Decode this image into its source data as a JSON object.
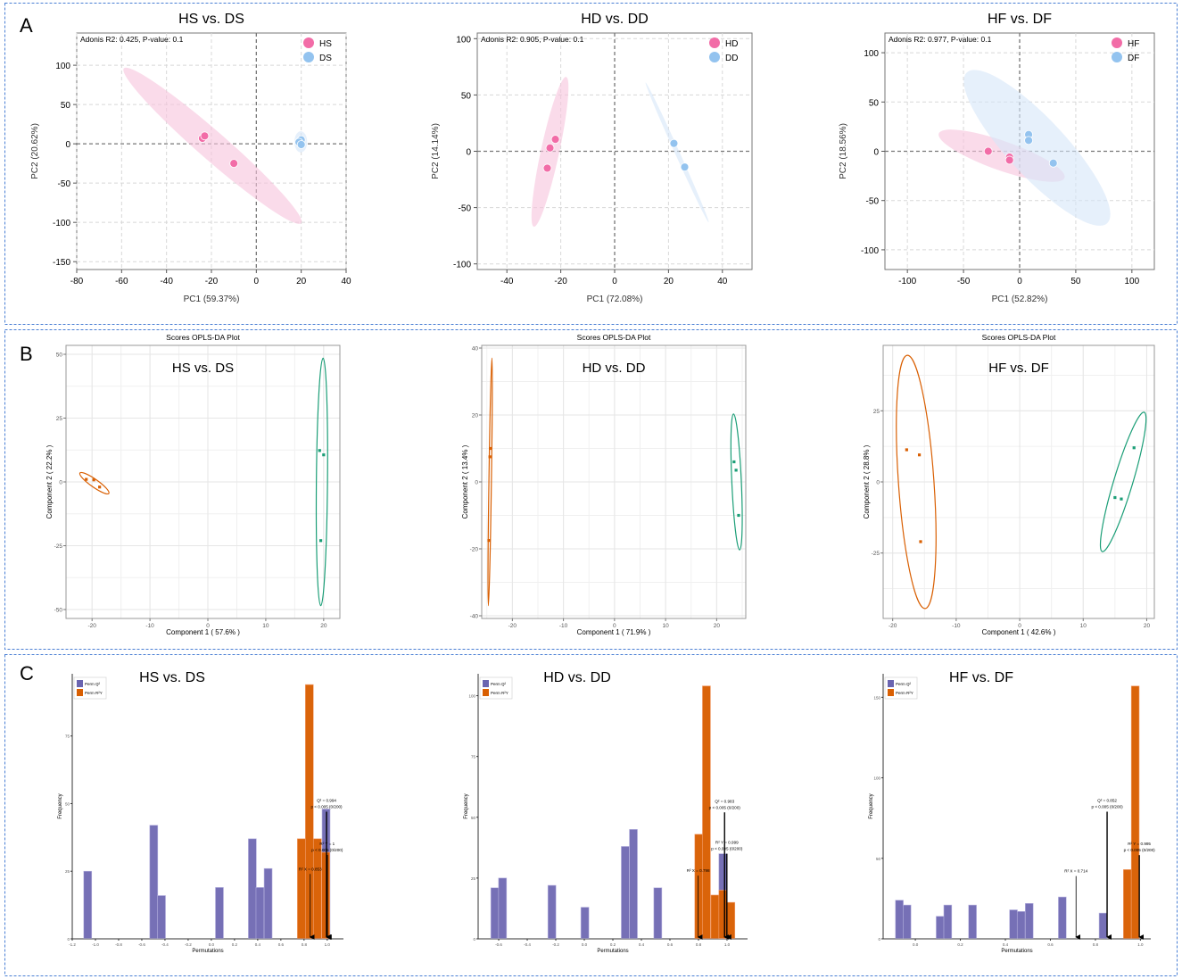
{
  "panels": [
    "A",
    "B",
    "C"
  ],
  "colors": {
    "pink": "#f26ca7",
    "pink_fill": "#f7c3dc",
    "blue": "#93c3ef",
    "blue_fill": "#d6e6f8",
    "opls_orange": "#d95f02",
    "opls_green": "#1b9e77",
    "perm_q2": "#6a64b0",
    "perm_r2y": "#d95f02",
    "border": "#4a7fd4"
  },
  "chart_data": [
    {
      "type": "scatter",
      "style": "pca",
      "title": "HS vs. DS",
      "xlabel": "PC1 (59.37%)",
      "ylabel": "PC2 (20.62%)",
      "xlim": [
        -80,
        40
      ],
      "ylim": [
        -160,
        141
      ],
      "xticks": [
        "-80",
        "-60",
        "-40",
        "-20",
        "0",
        "20",
        "40"
      ],
      "yticks": [
        "100",
        "50",
        "0",
        "-50",
        "-100",
        "-150"
      ],
      "annotation": "Adonis R2: 0.425, P-value: 0.1",
      "series": [
        {
          "name": "HS",
          "color": "pink",
          "points": [
            [
              -24,
              7
            ],
            [
              -23,
              10
            ],
            [
              -10,
              -25
            ]
          ],
          "ellipse": {
            "center": [
              -19.5,
              -2.5
            ],
            "axis_end_offset": [
              39.5,
              -98.5
            ],
            "minor_ratio": 0.12
          }
        },
        {
          "name": "DS",
          "color": "blue",
          "points": [
            [
              20,
              5
            ],
            [
              19,
              2
            ],
            [
              20,
              -1
            ]
          ],
          "ellipse": {
            "center": [
              19.8,
              2.5
            ],
            "axis_end_offset": [
              0,
              13.5
            ],
            "minor_ratio": 0.6
          }
        }
      ]
    },
    {
      "type": "scatter",
      "style": "pca",
      "title": "HD vs. DD",
      "xlabel": "PC1 (72.08%)",
      "ylabel": "PC2 (14.14%)",
      "xlim": [
        -51,
        51
      ],
      "ylim": [
        -105,
        105
      ],
      "xticks": [
        "-40",
        "-20",
        "0",
        "20",
        "40"
      ],
      "yticks": [
        "100",
        "50",
        "0",
        "-50",
        "-100"
      ],
      "annotation": "Adonis R2: 0.905, P-value: 0.1",
      "series": [
        {
          "name": "HD",
          "color": "pink",
          "points": [
            [
              -22,
              10.6
            ],
            [
              -24,
              3
            ],
            [
              -25,
              -15
            ]
          ],
          "ellipse": {
            "center": [
              -24,
              -0.5
            ],
            "axis_end_offset": [
              6,
              66.5
            ],
            "minor_ratio": 0.12
          }
        },
        {
          "name": "DD",
          "color": "blue",
          "points": [
            [
              22,
              7
            ],
            [
              26,
              -14
            ]
          ],
          "ellipse": {
            "center": [
              23.2,
              -1
            ],
            "axis_end_offset": [
              11.7,
              -62
            ],
            "minor_ratio": 0.03
          }
        }
      ]
    },
    {
      "type": "scatter",
      "style": "pca",
      "title": "HF vs. DF",
      "xlabel": "PC1 (52.82%)",
      "ylabel": "PC2 (18.56%)",
      "xlim": [
        -120,
        120
      ],
      "ylim": [
        -120,
        120
      ],
      "xticks": [
        "-100",
        "-50",
        "0",
        "50",
        "100"
      ],
      "yticks": [
        "100",
        "50",
        "0",
        "-50",
        "-100"
      ],
      "annotation": "Adonis R2: 0.977, P-value: 0.1",
      "series": [
        {
          "name": "HF",
          "color": "pink",
          "points": [
            [
              -28,
              0
            ],
            [
              -9,
              -6
            ],
            [
              -9,
              -9
            ]
          ],
          "ellipse": {
            "center": [
              -16,
              -4.5
            ],
            "axis_end_offset": [
              56,
              -22.5
            ],
            "minor_ratio": 0.22
          }
        },
        {
          "name": "DF",
          "color": "blue",
          "points": [
            [
              8,
              17
            ],
            [
              8,
              11
            ],
            [
              30,
              -12
            ]
          ],
          "ellipse": {
            "center": [
              15.5,
              3.5
            ],
            "axis_end_offset": [
              62.5,
              -76.5
            ],
            "minor_ratio": 0.28
          }
        }
      ]
    },
    {
      "type": "scatter",
      "style": "opls",
      "plot_title": "Scores OPLS-DA Plot",
      "title": "HS vs. DS",
      "xlabel": "Component 1 ( 57.6% )",
      "ylabel": "Component 2 ( 22.2% )",
      "xlim": [
        -24.5,
        22.8
      ],
      "ylim": [
        -53.5,
        53.5
      ],
      "xticks": [
        "-20",
        "-10",
        "0",
        "10",
        "20"
      ],
      "yticks": [
        "50",
        "25",
        "0",
        "-25",
        "-50"
      ],
      "series": [
        {
          "color": "opls_orange",
          "points": [
            [
              -21,
              1
            ],
            [
              -19.7,
              0.8
            ],
            [
              -18.7,
              -2
            ]
          ],
          "ellipse": {
            "center": [
              -19.6,
              -0.5
            ],
            "axis_end_offset": [
              2.5,
              -4
            ],
            "minor_ratio": 0.22
          }
        },
        {
          "color": "opls_green",
          "points": [
            [
              19.3,
              12.3
            ],
            [
              20,
              10.6
            ],
            [
              19.5,
              -23
            ]
          ],
          "ellipse": {
            "center": [
              19.7,
              0
            ],
            "axis_end_offset": [
              0.2,
              48.5
            ],
            "minor_ratio": 0.045
          }
        }
      ]
    },
    {
      "type": "scatter",
      "style": "opls",
      "plot_title": "Scores OPLS-DA Plot",
      "title": "HD vs. DD",
      "xlabel": "Component 1 ( 71.9% )",
      "ylabel": "Component 2 ( 13.4% )",
      "xlim": [
        -26,
        25.7
      ],
      "ylim": [
        -40.8,
        40.8
      ],
      "xticks": [
        "-20",
        "-10",
        "0",
        "10",
        "20"
      ],
      "yticks": [
        "40",
        "20",
        "0",
        "-20",
        "-40"
      ],
      "series": [
        {
          "color": "opls_orange",
          "points": [
            [
              -24.3,
              10
            ],
            [
              -24.4,
              7.5
            ],
            [
              -24.6,
              -17.5
            ]
          ],
          "ellipse": {
            "center": [
              -24.35,
              0
            ],
            "axis_end_offset": [
              0.35,
              37
            ],
            "minor_ratio": 0.01
          }
        },
        {
          "color": "opls_green",
          "points": [
            [
              23.4,
              6
            ],
            [
              23.8,
              3.5
            ],
            [
              24.3,
              -10
            ]
          ],
          "ellipse": {
            "center": [
              23.9,
              0
            ],
            "axis_end_offset": [
              -0.6,
              20.3
            ],
            "minor_ratio": 0.07
          }
        }
      ]
    },
    {
      "type": "scatter",
      "style": "opls",
      "plot_title": "Scores OPLS-DA Plot",
      "title": "HF vs. DF",
      "xlabel": "Component 1 ( 42.6% )",
      "ylabel": "Component 2 ( 28.8% )",
      "xlim": [
        -21.5,
        21.2
      ],
      "ylim": [
        -48,
        48
      ],
      "xticks": [
        "-20",
        "-10",
        "0",
        "10",
        "20"
      ],
      "yticks": [
        "25",
        "0",
        "-25"
      ],
      "series": [
        {
          "color": "opls_orange",
          "points": [
            [
              -17.8,
              11.3
            ],
            [
              -15.8,
              9.5
            ],
            [
              -15.6,
              -21
            ]
          ],
          "ellipse": {
            "center": [
              -16.3,
              0
            ],
            "axis_end_offset": [
              -1.4,
              44.5
            ],
            "minor_ratio": 0.14
          }
        },
        {
          "color": "opls_green",
          "points": [
            [
              15,
              -5.5
            ],
            [
              16,
              -6
            ],
            [
              18,
              12
            ]
          ],
          "ellipse": {
            "center": [
              16.3,
              0
            ],
            "axis_end_offset": [
              3.3,
              24.5
            ],
            "minor_ratio": 0.13
          }
        }
      ]
    },
    {
      "type": "bar",
      "style": "histogram",
      "title": "HS vs. DS",
      "xlabel": "Permutations",
      "ylabel": "Frequency",
      "xlim": [
        -1.2,
        1.14
      ],
      "ylim": [
        0,
        98
      ],
      "bin_width": 0.069,
      "xticks": [
        "-1.2",
        "-1.0",
        "-0.8",
        "-0.6",
        "-0.4",
        "-0.2",
        "0.0",
        "0.2",
        "0.4",
        "0.6",
        "0.8",
        "1.0"
      ],
      "yticks": [
        "0",
        "25",
        "50",
        "75"
      ],
      "legend": [
        "Perm Q²",
        "Perm R²Y"
      ],
      "series": [
        {
          "name": "Perm Q²",
          "color": "perm_q2",
          "bins": [
            [
              -1.067,
              25
            ],
            [
              -0.497,
              42
            ],
            [
              -0.43,
              16
            ],
            [
              0.07,
              19
            ],
            [
              0.354,
              37
            ],
            [
              0.42,
              19
            ],
            [
              0.49,
              26
            ],
            [
              0.99,
              48
            ]
          ]
        },
        {
          "name": "Perm R²Y",
          "color": "perm_r2y",
          "bins": [
            [
              0.777,
              37
            ],
            [
              0.846,
              94
            ],
            [
              0.915,
              37
            ],
            [
              0.987,
              32
            ]
          ]
        }
      ],
      "annotations": [
        {
          "lines": [
            "R² X = 0.853"
          ],
          "x": 0.853,
          "from": 24
        },
        {
          "lines": [
            "Q² = 0.994",
            "p < 0.005 (0/200)"
          ],
          "x": 0.994,
          "from": 47
        },
        {
          "lines": [
            "R² Y = 1",
            "p < 0.005 (0/200)"
          ],
          "x": 1.0,
          "from": 31
        }
      ]
    },
    {
      "type": "bar",
      "style": "histogram",
      "title": "HD vs. DD",
      "xlabel": "Permutations",
      "ylabel": "Frequency",
      "xlim": [
        -0.744,
        1.144
      ],
      "ylim": [
        0,
        109
      ],
      "bin_width": 0.056,
      "xticks": [
        "-0.6",
        "-0.4",
        "-0.2",
        "0.0",
        "0.2",
        "0.4",
        "0.6",
        "0.8",
        "1.0"
      ],
      "yticks": [
        "0",
        "25",
        "50",
        "75",
        "100"
      ],
      "legend": [
        "Perm Q²",
        "Perm R²Y"
      ],
      "series": [
        {
          "name": "Perm Q²",
          "color": "perm_q2",
          "bins": [
            [
              -0.627,
              21
            ],
            [
              -0.573,
              25
            ],
            [
              -0.227,
              22
            ],
            [
              0.004,
              13
            ],
            [
              0.287,
              38
            ],
            [
              0.344,
              45
            ],
            [
              0.515,
              21
            ],
            [
              0.971,
              35
            ]
          ]
        },
        {
          "name": "Perm R²Y",
          "color": "perm_r2y",
          "bins": [
            [
              0.802,
              43
            ],
            [
              0.856,
              104
            ],
            [
              0.915,
              18
            ],
            [
              0.971,
              20
            ],
            [
              1.027,
              15
            ]
          ]
        }
      ],
      "annotations": [
        {
          "lines": [
            "R² X = 0.798"
          ],
          "x": 0.798,
          "from": 26
        },
        {
          "lines": [
            "Q² = 0.983",
            "p < 0.005 (0/200)"
          ],
          "x": 0.983,
          "from": 52
        },
        {
          "lines": [
            "R² Y = 0.999",
            "p < 0.005 (0/200)"
          ],
          "x": 0.999,
          "from": 35
        }
      ]
    },
    {
      "type": "bar",
      "style": "histogram",
      "title": "HF vs. DF",
      "xlabel": "Permutations",
      "ylabel": "Frequency",
      "xlim": [
        -0.143,
        1.046
      ],
      "ylim": [
        0,
        164.6
      ],
      "bin_width": 0.035,
      "xticks": [
        "0.0",
        "0.2",
        "0.4",
        "0.6",
        "0.8",
        "1.0"
      ],
      "yticks": [
        "0",
        "50",
        "100",
        "150"
      ],
      "legend": [
        "Perm Q²",
        "Perm R²Y"
      ],
      "series": [
        {
          "name": "Perm Q²",
          "color": "perm_q2",
          "bins": [
            [
              -0.071,
              24
            ],
            [
              -0.037,
              21
            ],
            [
              0.11,
              14
            ],
            [
              0.144,
              21
            ],
            [
              0.254,
              21
            ],
            [
              0.436,
              18
            ],
            [
              0.47,
              17
            ],
            [
              0.506,
              22
            ],
            [
              0.653,
              26
            ],
            [
              0.834,
              16
            ]
          ]
        },
        {
          "name": "Perm R²Y",
          "color": "perm_r2y",
          "bins": [
            [
              0.942,
              43
            ],
            [
              0.977,
              157
            ]
          ]
        }
      ],
      "annotations": [
        {
          "lines": [
            "R² X = 0.714"
          ],
          "x": 0.714,
          "from": 39
        },
        {
          "lines": [
            "Q² = 0.852",
            "p < 0.005 (0/200)"
          ],
          "x": 0.852,
          "from": 79
        },
        {
          "lines": [
            "R² Y = 0.995",
            "p < 0.005 (0/200)"
          ],
          "x": 0.995,
          "from": 52
        }
      ]
    }
  ]
}
